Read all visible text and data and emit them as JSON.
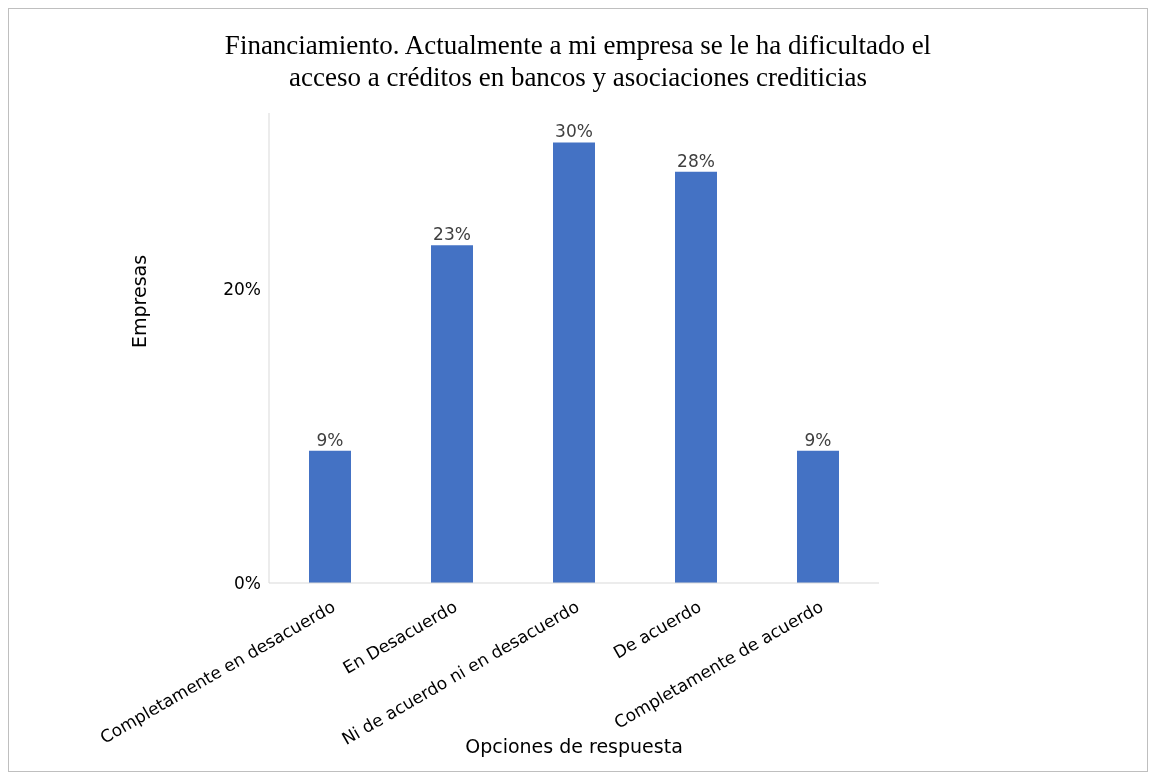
{
  "chart_data": {
    "type": "bar",
    "title": "Financiamiento. Actualmente a mi empresa se le ha dificultado el acceso a créditos en bancos y asociaciones crediticias",
    "xlabel": "Opciones de respuesta",
    "ylabel": "Empresas",
    "categories": [
      "Completamente en desacuerdo",
      "En Desacuerdo",
      "Ni de acuerdo ni en desacuerdo",
      "De acuerdo",
      "Completamente de acuerdo"
    ],
    "values": [
      9,
      23,
      30,
      28,
      9
    ],
    "value_labels": [
      "9%",
      "23%",
      "30%",
      "28%",
      "9%"
    ],
    "color": "#4472c4",
    "ylim": [
      0,
      32
    ],
    "yticks": [
      {
        "value": 0,
        "label": "0%"
      },
      {
        "value": 20,
        "label": "20%"
      }
    ],
    "grid": false,
    "legend": false
  }
}
